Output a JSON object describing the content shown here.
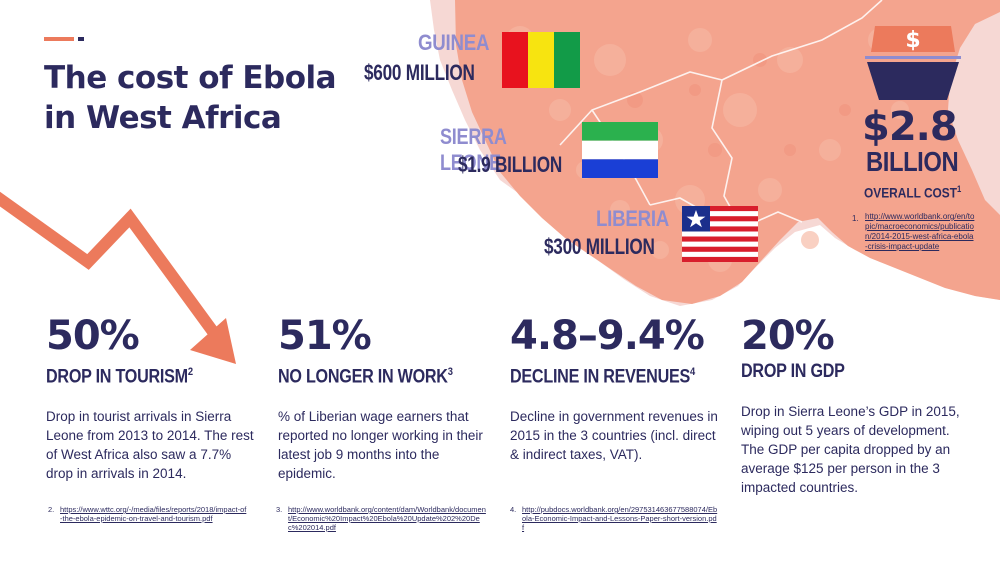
{
  "title": "The cost of Ebola in West Africa",
  "countries": [
    {
      "name": "GUINEA",
      "amount": "$600 MILLION"
    },
    {
      "name": "SIERRA LEONE",
      "amount": "$1.9 BILLION"
    },
    {
      "name": "LIBERIA",
      "amount": "$300 MILLION"
    }
  ],
  "total": {
    "icon": "dollar-sign-icon",
    "value": "$2.8",
    "unit": "BILLION",
    "label": "OVERALL COST",
    "label_ref": "1",
    "footnote_number": "1.",
    "footnote": "http://www.worldbank.org/en/topic/macroeconomics/publication/2014-2015-west-africa-ebola-crisis-impact-update"
  },
  "stats": [
    {
      "value": "50%",
      "label": "DROP IN TOURISM",
      "ref": "2",
      "description": "Drop in tourist arrivals in Sierra Leone from 2013 to 2014. The rest of West Africa also saw a 7.7% drop in arrivals in 2014.",
      "footnote_number": "2.",
      "footnote": "https://www.wttc.org/-/media/files/reports/2018/impact-of-the-ebola-epidemic-on-travel-and-tourism.pdf"
    },
    {
      "value": "51%",
      "label": "NO LONGER IN WORK",
      "ref": "3",
      "description": "% of Liberian wage earners that reported no longer working in their latest job 9 months into the epidemic.",
      "footnote_number": "3.",
      "footnote": "http://www.worldbank.org/content/dam/Worldbank/document/Economic%20Impact%20Ebola%20Update%202%20Dec%202014.pdf"
    },
    {
      "value": "4.8–9.4%",
      "label": "DECLINE IN REVENUES",
      "ref": "4",
      "description": "Decline in government revenues in 2015 in the 3 countries (incl. direct & indirect taxes, VAT).",
      "footnote_number": "4.",
      "footnote": "http://pubdocs.worldbank.org/en/297531463677588074/Ebola-Economic-Impact-and-Lessons-Paper-short-version.pdf"
    },
    {
      "value": "20%",
      "label": "DROP IN GDP",
      "ref": "",
      "description": "Drop in Sierra Leone’s GDP in 2015, wiping out 5 years of development. The GDP per capita dropped by an average $125 per person in the 3 impacted countries.",
      "footnote_number": "",
      "footnote": ""
    }
  ],
  "colors": {
    "navy": "#2c2a5e",
    "lavender": "#8f8ccf",
    "coral": "#ec7a5c",
    "map": "#f4a48e"
  }
}
